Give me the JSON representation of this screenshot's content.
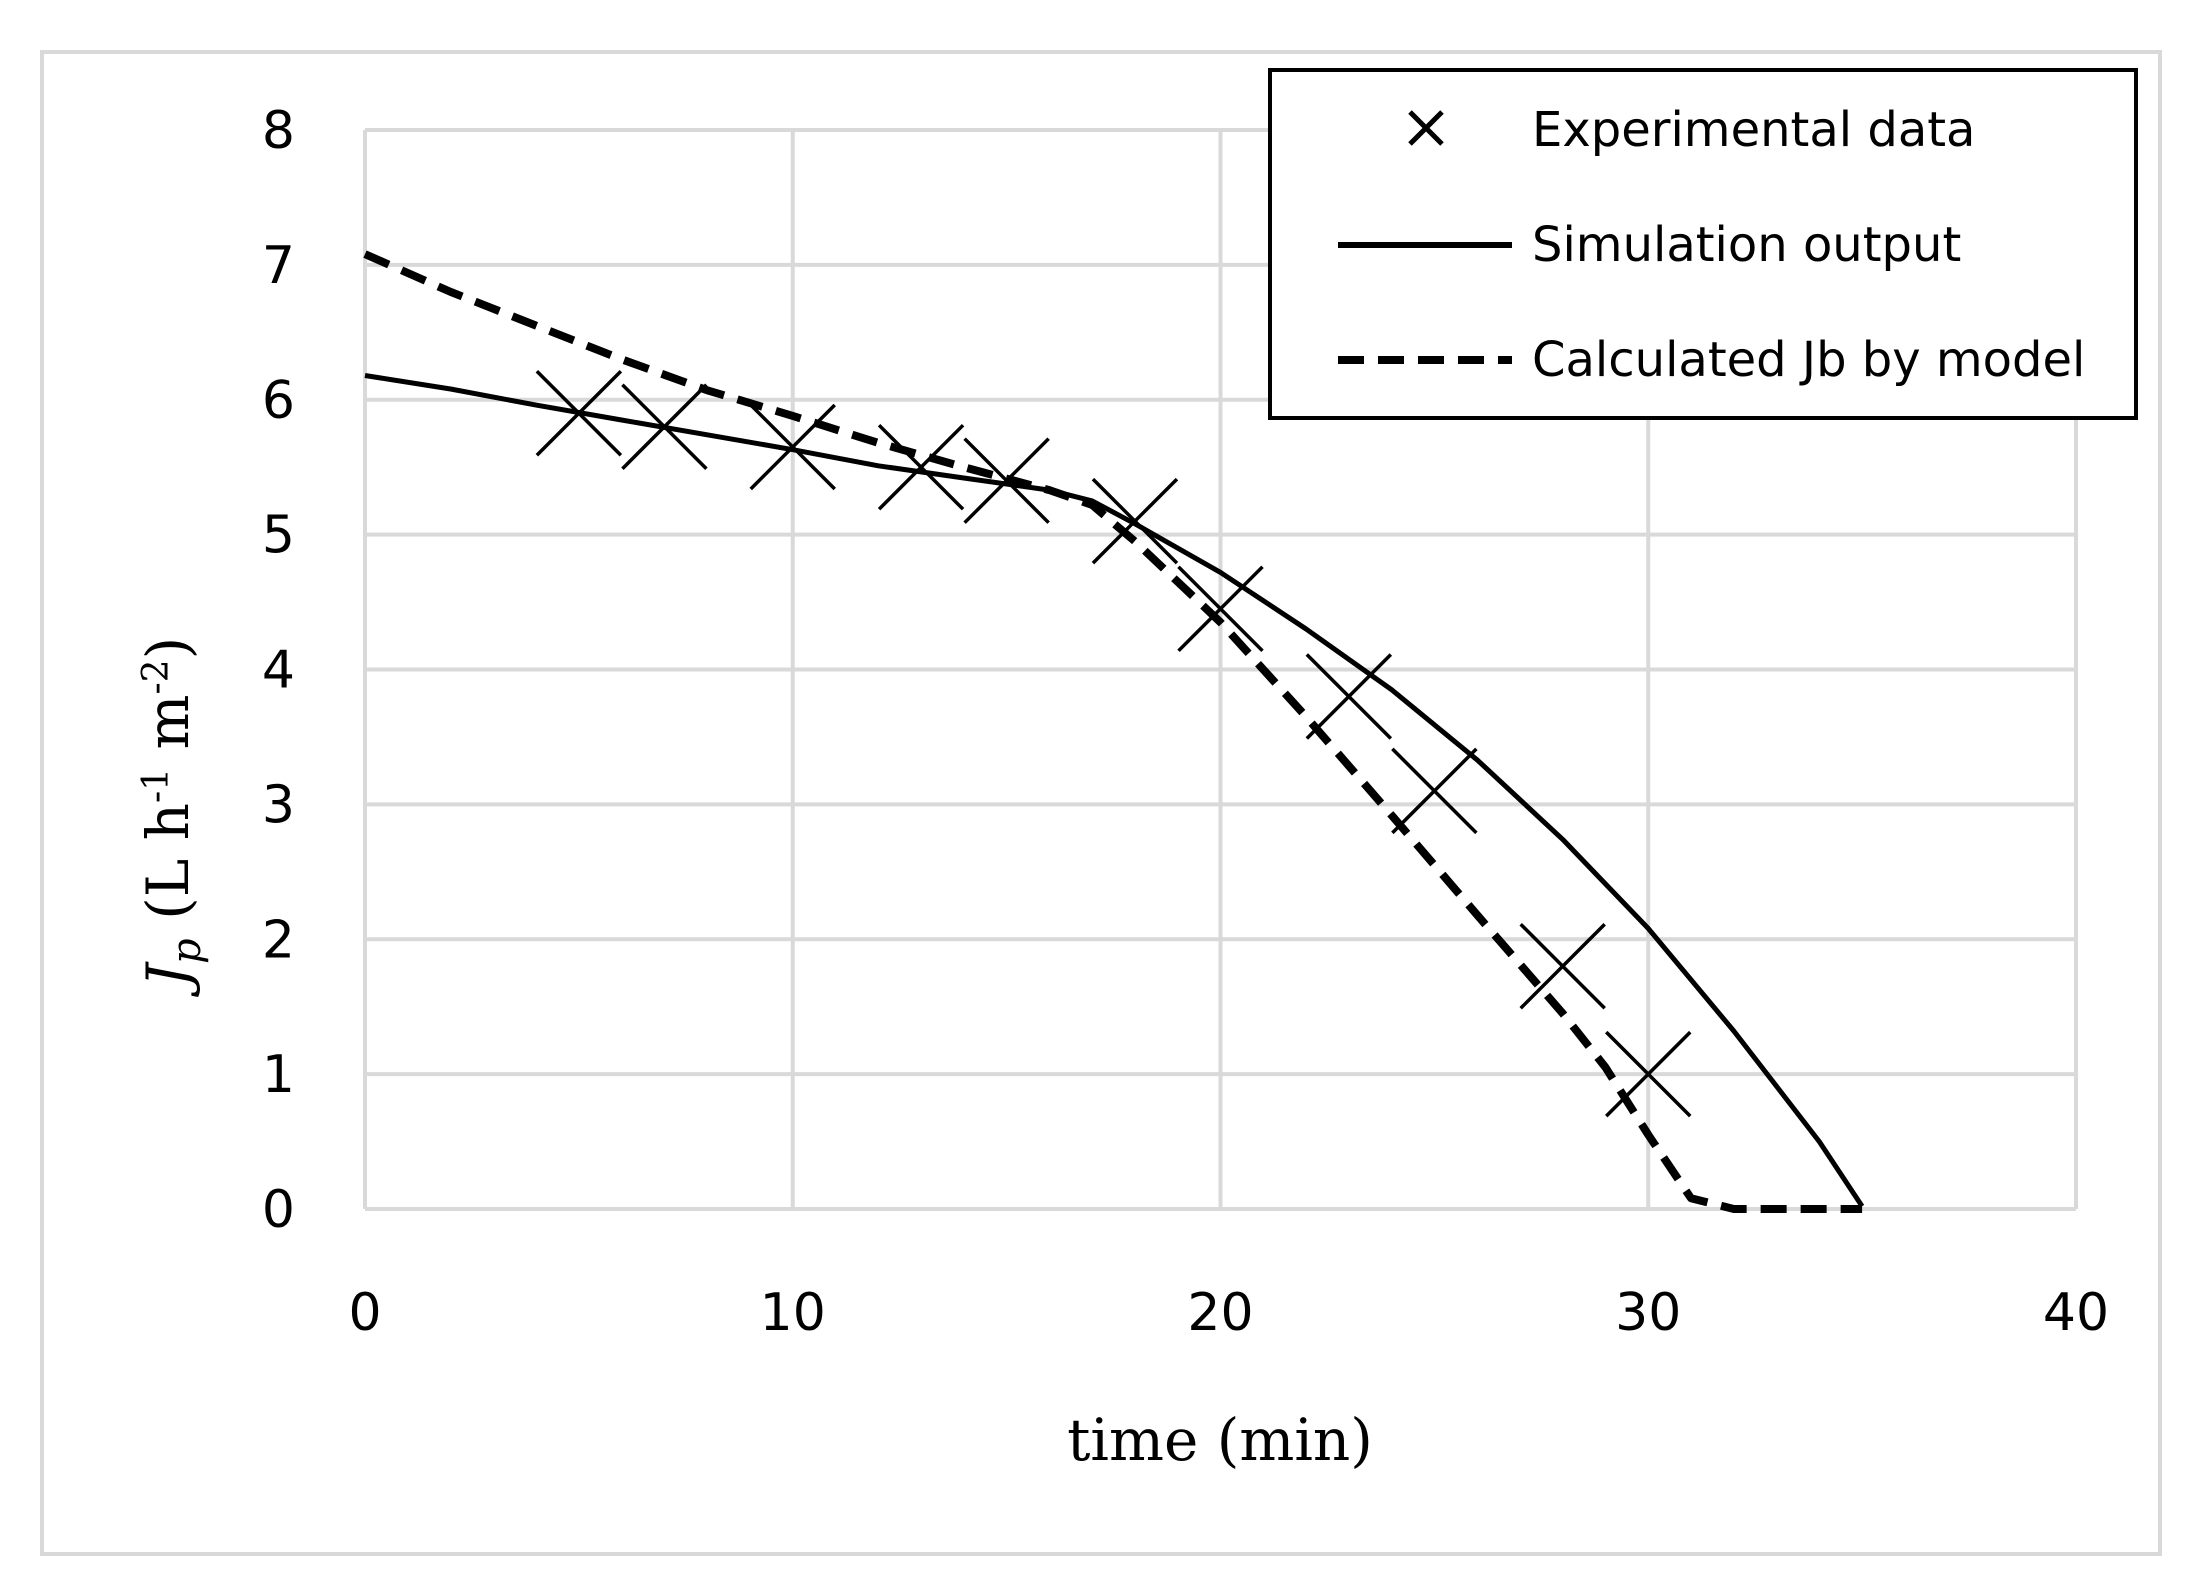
{
  "chart_data": {
    "type": "line",
    "title": "",
    "xlabel": "time (min)",
    "ylabel": {
      "symbol": "J",
      "subscript": "p",
      "unit_prefix": " (L h",
      "exp1": "-1",
      "unit_mid": " m",
      "exp2": "-2",
      "unit_suffix": ")"
    },
    "xlim": [
      0,
      40
    ],
    "ylim": [
      0,
      8
    ],
    "xticks": [
      "0",
      "10",
      "20",
      "30",
      "40"
    ],
    "yticks": [
      "0",
      "1",
      "2",
      "3",
      "4",
      "5",
      "6",
      "7",
      "8"
    ],
    "grid": true,
    "legend_position": "top-right",
    "series": [
      {
        "name": "Experimental data",
        "kind": "marker-x",
        "x": [
          5,
          7,
          10,
          13,
          15,
          18,
          20,
          23,
          25,
          28,
          30
        ],
        "y": [
          5.9,
          5.8,
          5.65,
          5.5,
          5.4,
          5.1,
          4.45,
          3.8,
          3.1,
          1.8,
          1.0
        ]
      },
      {
        "name": "Simulation output",
        "kind": "solid",
        "x": [
          0,
          2,
          4,
          6,
          8,
          10,
          12,
          14,
          16,
          17,
          18,
          20,
          22,
          24,
          26,
          28,
          30,
          32,
          34,
          35
        ],
        "y": [
          6.18,
          6.08,
          5.96,
          5.85,
          5.74,
          5.63,
          5.51,
          5.42,
          5.33,
          5.25,
          5.08,
          4.72,
          4.3,
          3.85,
          3.33,
          2.74,
          2.08,
          1.32,
          0.5,
          0.02
        ]
      },
      {
        "name": "Calculated Jb by model",
        "kind": "dashed",
        "x": [
          0,
          2,
          4,
          6,
          8,
          10,
          12,
          14,
          16,
          17,
          18,
          20,
          22,
          24,
          26,
          28,
          29,
          30,
          31,
          32,
          34,
          35
        ],
        "y": [
          7.08,
          6.8,
          6.55,
          6.3,
          6.07,
          5.88,
          5.68,
          5.5,
          5.33,
          5.22,
          4.95,
          4.35,
          3.65,
          2.92,
          2.18,
          1.45,
          1.05,
          0.55,
          0.08,
          0.0,
          0.0,
          0.0
        ]
      }
    ]
  }
}
